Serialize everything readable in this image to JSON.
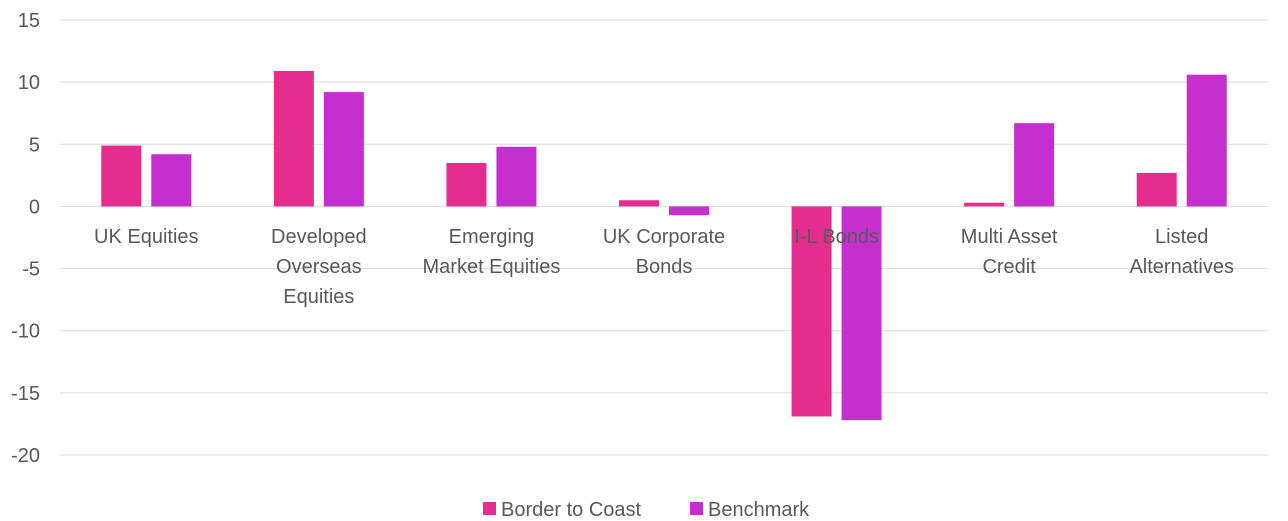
{
  "chart_data": {
    "type": "bar",
    "categories": [
      [
        "UK Equities"
      ],
      [
        "Developed",
        "Overseas",
        "Equities"
      ],
      [
        "Emerging",
        "Market Equities"
      ],
      [
        "UK Corporate",
        "Bonds"
      ],
      [
        "I-L Bonds"
      ],
      [
        "Multi Asset",
        "Credit"
      ],
      [
        "Listed",
        "Alternatives"
      ]
    ],
    "series": [
      {
        "name": "Border to Coast",
        "color": "#e42d8e",
        "values": [
          4.9,
          10.9,
          3.5,
          0.5,
          -16.9,
          0.3,
          2.7
        ]
      },
      {
        "name": "Benchmark",
        "color": "#c52fcf",
        "values": [
          4.2,
          9.2,
          4.8,
          -0.7,
          -17.2,
          6.7,
          10.6
        ]
      }
    ],
    "yticks": [
      "15",
      "10",
      "5",
      "0",
      "-5",
      "-10",
      "-15",
      "-20"
    ],
    "ylim": [
      -20,
      15
    ],
    "grid": true,
    "legend_position": "bottom-center"
  }
}
